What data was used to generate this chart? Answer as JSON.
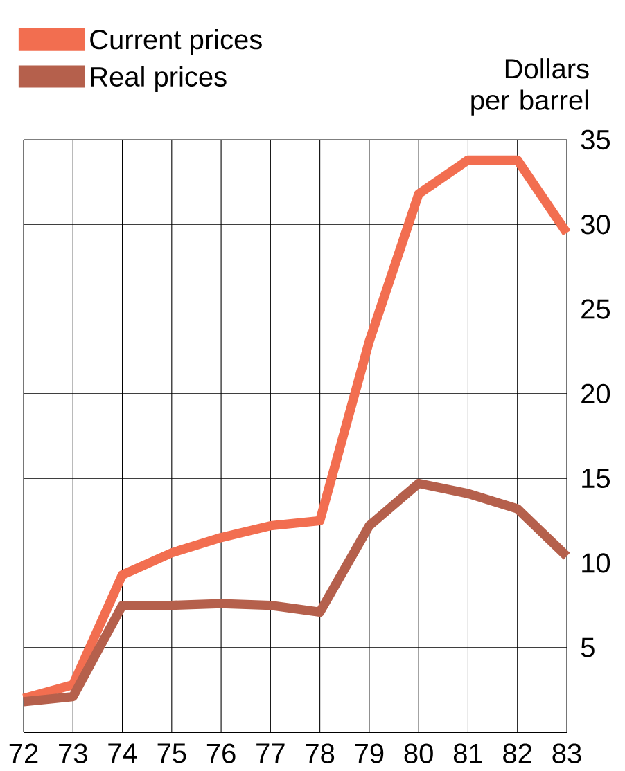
{
  "chart_data": {
    "type": "line",
    "ylabel": "Dollars per barrel",
    "categories": [
      "72",
      "73",
      "74",
      "75",
      "76",
      "77",
      "78",
      "79",
      "80",
      "81",
      "82",
      "83"
    ],
    "series": [
      {
        "name": "Current prices",
        "color": "#f26e50",
        "values": [
          2.0,
          2.8,
          9.3,
          10.6,
          11.5,
          12.2,
          12.5,
          23.1,
          31.8,
          33.8,
          33.8,
          29.5
        ]
      },
      {
        "name": "Real prices",
        "color": "#b5604c",
        "values": [
          1.8,
          2.1,
          7.5,
          7.5,
          7.6,
          7.5,
          7.1,
          12.2,
          14.7,
          14.1,
          13.2,
          10.4
        ]
      }
    ],
    "ylim": [
      0,
      35
    ],
    "yticks": [
      5,
      10,
      15,
      20,
      25,
      30,
      35
    ],
    "grid": true,
    "legend": "top left",
    "marker": "none",
    "line_style": "solid"
  }
}
